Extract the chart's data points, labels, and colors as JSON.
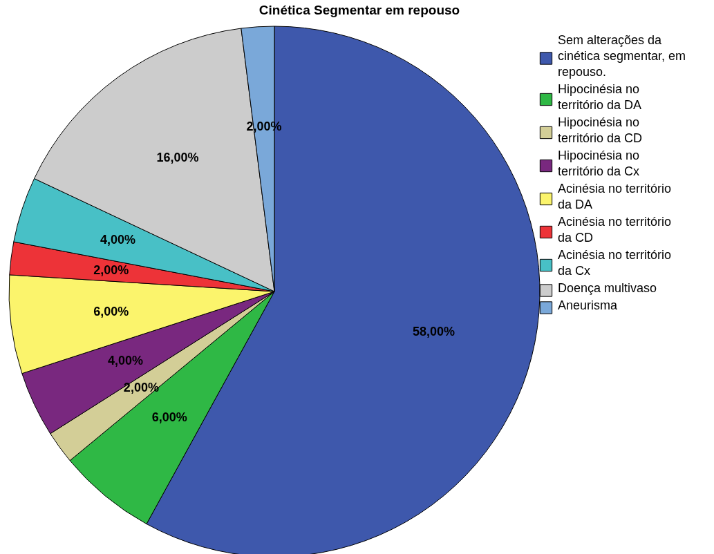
{
  "chart_data": {
    "type": "pie",
    "title": "Cinética Segmentar em repouso",
    "categories": [
      "Sem alterações da cinética segmentar, em repouso.",
      "Hipocinésia no território da DA",
      "Hipocinésia no território da CD",
      "Hipocinésia no território da Cx",
      "Acinésia no território da DA",
      "Acinésia no território da CD",
      "Acinésia no território da Cx",
      "Doença multivaso",
      "Aneurisma"
    ],
    "values": [
      58,
      6,
      2,
      4,
      6,
      2,
      4,
      16,
      2
    ],
    "colors": [
      "#3e58ac",
      "#2fb845",
      "#d3ce97",
      "#79287f",
      "#fbf46c",
      "#ed3338",
      "#48c0c6",
      "#cccccc",
      "#7aa8d9"
    ],
    "value_labels": [
      "58,00%",
      "6,00%",
      "2,00%",
      "4,00%",
      "6,00%",
      "2,00%",
      "4,00%",
      "16,00%",
      "2,00%"
    ],
    "legend": "right"
  }
}
